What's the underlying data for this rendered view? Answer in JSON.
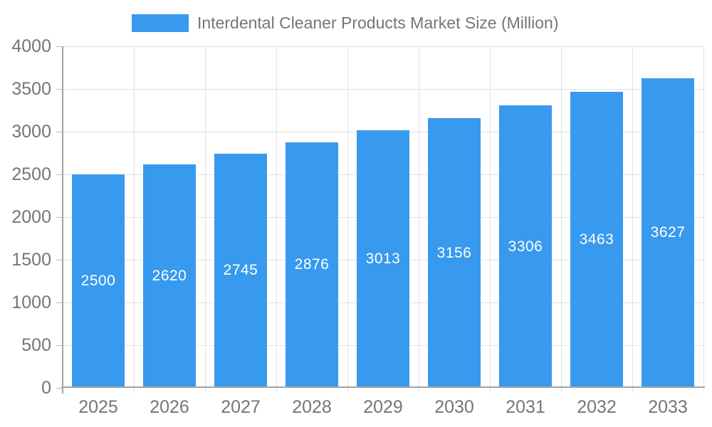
{
  "chart_data": {
    "type": "bar",
    "title": "Interdental Cleaner Products Market Size (Million)",
    "categories": [
      "2025",
      "2026",
      "2027",
      "2028",
      "2029",
      "2030",
      "2031",
      "2032",
      "2033"
    ],
    "values": [
      2500,
      2620,
      2745,
      2876,
      3013,
      3156,
      3306,
      3463,
      3627
    ],
    "ylim": [
      0,
      4000
    ],
    "ytick_step": 500,
    "ytick_labels": [
      "0",
      "500",
      "1000",
      "1500",
      "2000",
      "2500",
      "3000",
      "3500",
      "4000"
    ],
    "grid": "on",
    "legend_position": "top",
    "value_labels": "inside-center",
    "colors": {
      "bar": "#389AEE",
      "grid": "#E3E3E3",
      "axis": "#A3A3A3",
      "tick": "#BBBBBB",
      "axis_text": "#757575",
      "value_label_text": "#FFFFFF",
      "background": "#FFFFFF"
    }
  }
}
